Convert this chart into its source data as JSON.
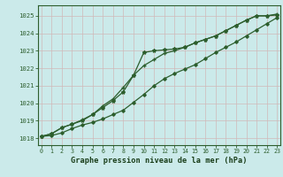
{
  "title": "Graphe pression niveau de la mer (hPa)",
  "background_color": "#cbeaea",
  "grid_color": "#b0c8c8",
  "line_color": "#2d5e2d",
  "x_ticks": [
    0,
    1,
    2,
    3,
    4,
    5,
    6,
    7,
    8,
    9,
    10,
    11,
    12,
    13,
    14,
    15,
    16,
    17,
    18,
    19,
    20,
    21,
    22,
    23
  ],
  "y_ticks": [
    1018,
    1019,
    1020,
    1021,
    1022,
    1023,
    1024,
    1025
  ],
  "ylim": [
    1017.6,
    1025.6
  ],
  "xlim": [
    -0.3,
    23.3
  ],
  "series1": [
    1018.1,
    1018.15,
    1018.3,
    1018.55,
    1018.75,
    1018.9,
    1019.1,
    1019.35,
    1019.6,
    1020.05,
    1020.5,
    1021.0,
    1021.4,
    1021.7,
    1021.95,
    1022.2,
    1022.55,
    1022.9,
    1023.2,
    1023.5,
    1023.85,
    1024.2,
    1024.55,
    1024.9
  ],
  "series2": [
    1018.1,
    1018.25,
    1018.6,
    1018.8,
    1019.0,
    1019.35,
    1019.75,
    1020.15,
    1020.65,
    1021.6,
    1022.9,
    1023.0,
    1023.05,
    1023.1,
    1023.2,
    1023.45,
    1023.65,
    1023.85,
    1024.15,
    1024.45,
    1024.75,
    1025.0,
    1025.0,
    1025.05
  ],
  "series3": [
    1018.1,
    1018.25,
    1018.6,
    1018.8,
    1019.05,
    1019.35,
    1019.85,
    1020.25,
    1020.9,
    1021.6,
    1022.15,
    1022.5,
    1022.85,
    1023.0,
    1023.2,
    1023.45,
    1023.65,
    1023.85,
    1024.15,
    1024.45,
    1024.75,
    1025.0,
    1025.0,
    1025.1
  ]
}
